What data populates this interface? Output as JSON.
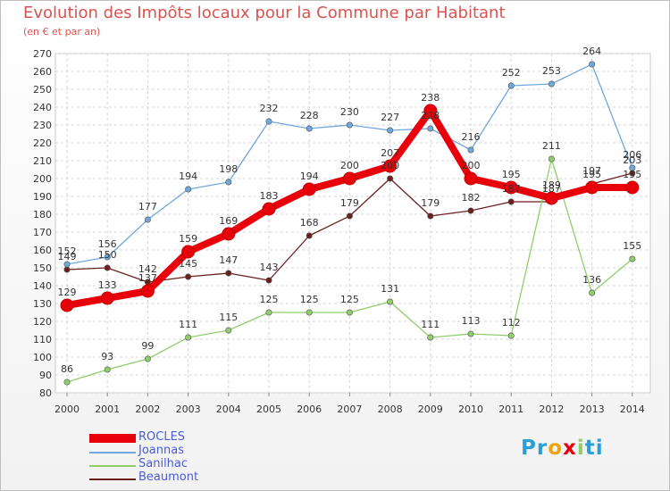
{
  "chart_data": {
    "type": "line",
    "title": "Evolution des Impôts locaux pour la Commune par Habitant",
    "subtitle": "(en € et par an)",
    "categories": [
      "2000",
      "2001",
      "2002",
      "2003",
      "2004",
      "2005",
      "2006",
      "2007",
      "2008",
      "2009",
      "2010",
      "2011",
      "2012",
      "2013",
      "2014"
    ],
    "ylim": [
      80,
      270
    ],
    "yticks": [
      80,
      90,
      100,
      110,
      120,
      130,
      140,
      150,
      160,
      170,
      180,
      190,
      200,
      210,
      220,
      230,
      240,
      250,
      260,
      270
    ],
    "grid": true,
    "series": [
      {
        "name": "ROCLES",
        "color": "#e8000b",
        "values": [
          129,
          133,
          137,
          159,
          169,
          183,
          194,
          200,
          207,
          238,
          200,
          195,
          189,
          195,
          195
        ],
        "labels": [
          "129",
          "133",
          "137",
          "159",
          "169",
          "183",
          "194",
          "200",
          "207",
          "238",
          "200",
          "195",
          "189",
          "195",
          "195"
        ]
      },
      {
        "name": "Joannas",
        "color": "#6fa8dc",
        "values": [
          152,
          156,
          177,
          194,
          198,
          232,
          228,
          230,
          227,
          228,
          216,
          252,
          253,
          264,
          206
        ],
        "labels": [
          "152",
          "156",
          "177",
          "194",
          "198",
          "232",
          "228",
          "230",
          "227",
          "228",
          "216",
          "252",
          "253",
          "264",
          "206"
        ]
      },
      {
        "name": "Sanilhac",
        "color": "#8fce6b",
        "values": [
          86,
          93,
          99,
          111,
          115,
          125,
          125,
          125,
          131,
          111,
          113,
          112,
          211,
          136,
          155
        ],
        "labels": [
          "86",
          "93",
          "99",
          "111",
          "115",
          "125",
          "125",
          "125",
          "131",
          "111",
          "113",
          "112",
          "211",
          "136",
          "155"
        ]
      },
      {
        "name": "Beaumont",
        "color": "#6b1f1f",
        "values": [
          149,
          150,
          142,
          145,
          147,
          143,
          168,
          179,
          200,
          179,
          182,
          187,
          187,
          197,
          203
        ],
        "labels": [
          "149",
          "150",
          "142",
          "145",
          "147",
          "143",
          "168",
          "179",
          "200",
          "179",
          "182",
          "187",
          "187",
          "197",
          "203"
        ]
      }
    ]
  },
  "logo": {
    "letters": [
      "P",
      "r",
      "o",
      "x",
      "i",
      "t",
      "i"
    ],
    "colors": [
      "#2a9fd6",
      "#2a9fd6",
      "#f0a30a",
      "#e8000b",
      "#8fce6b",
      "#2a9fd6",
      "#2a9fd6"
    ]
  }
}
